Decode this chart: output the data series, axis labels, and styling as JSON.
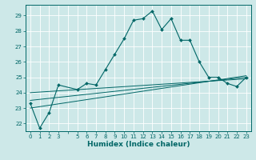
{
  "xlabel": "Humidex (Indice chaleur)",
  "background_color": "#cde8e8",
  "grid_color": "#ffffff",
  "line_color": "#006666",
  "xlim": [
    -0.5,
    23.5
  ],
  "ylim": [
    21.5,
    29.7
  ],
  "yticks": [
    22,
    23,
    24,
    25,
    26,
    27,
    28,
    29
  ],
  "xticks": [
    0,
    1,
    2,
    3,
    4,
    5,
    6,
    7,
    8,
    9,
    10,
    11,
    12,
    13,
    14,
    15,
    16,
    17,
    18,
    19,
    20,
    21,
    22,
    23
  ],
  "xtick_labels": [
    "0",
    "1",
    "2",
    "3",
    "",
    "5",
    "6",
    "7",
    "8",
    "9",
    "10",
    "11",
    "12",
    "13",
    "14",
    "15",
    "16",
    "17",
    "18",
    "19",
    "20",
    "21",
    "22",
    "23"
  ],
  "series1_x": [
    0,
    1,
    2,
    3,
    5,
    6,
    7,
    8,
    9,
    10,
    11,
    12,
    13,
    14,
    15,
    16,
    17,
    18,
    19,
    20,
    21,
    22,
    23
  ],
  "series1_y": [
    23.3,
    21.7,
    22.7,
    24.5,
    24.2,
    24.6,
    24.5,
    25.5,
    26.5,
    27.5,
    28.7,
    28.8,
    29.3,
    28.1,
    28.8,
    27.4,
    27.4,
    26.0,
    25.0,
    25.0,
    24.6,
    24.4,
    25.0
  ],
  "series2_x": [
    0,
    23
  ],
  "series2_y": [
    23.0,
    25.1
  ],
  "series3_x": [
    0,
    23
  ],
  "series3_y": [
    23.5,
    25.0
  ],
  "series4_x": [
    0,
    23
  ],
  "series4_y": [
    24.0,
    24.9
  ],
  "tick_fontsize": 5,
  "xlabel_fontsize": 6.5,
  "ylabel_fontsize": 6
}
